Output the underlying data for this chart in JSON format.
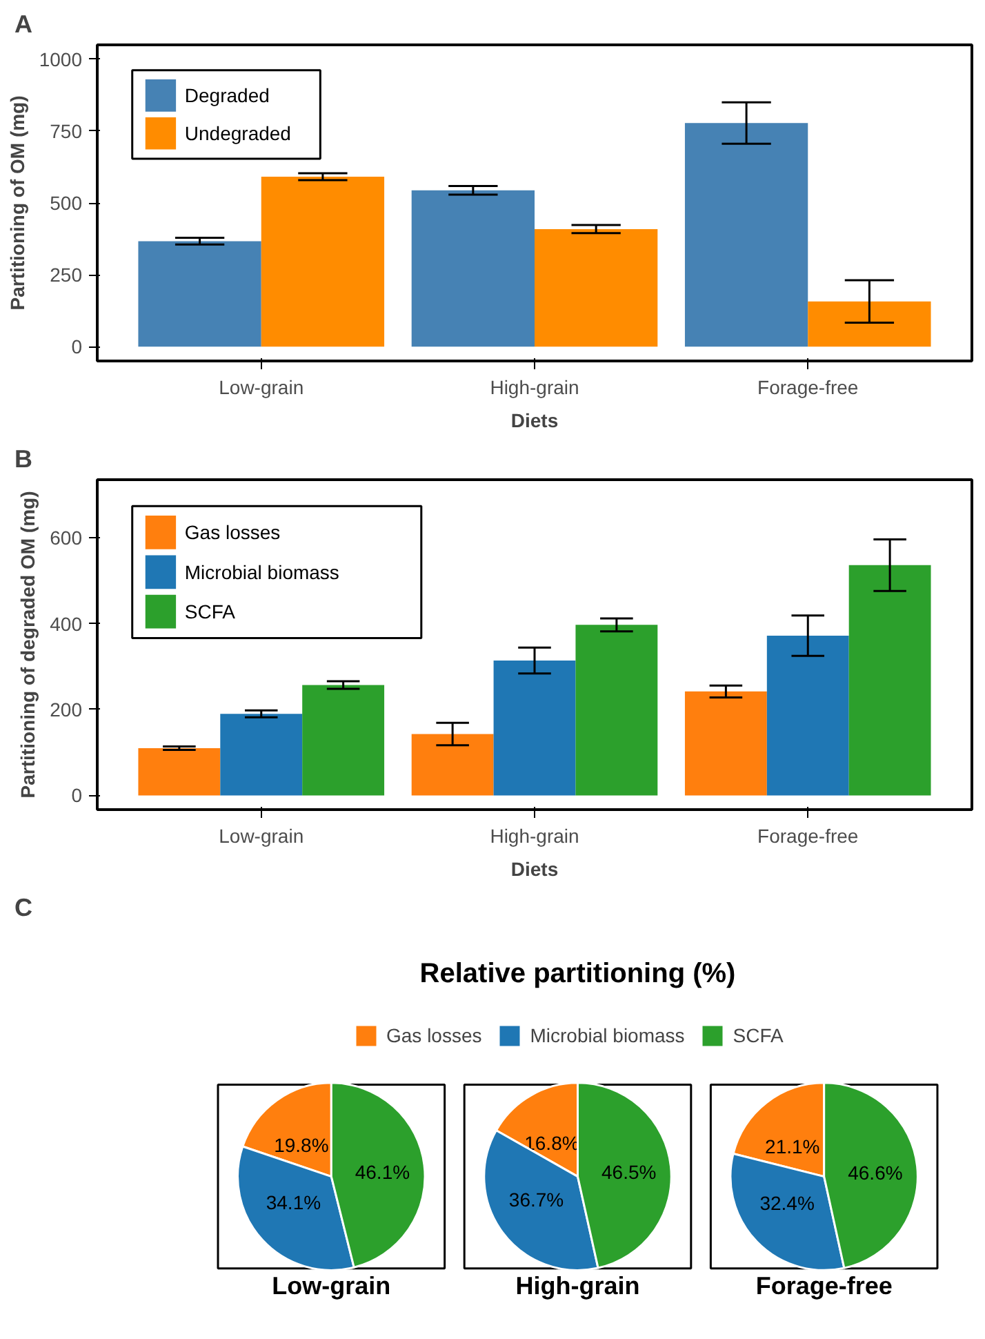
{
  "chart_data": [
    {
      "type": "bar",
      "annotations": [
        "A"
      ],
      "xlabel": "Diets",
      "ylabel": "Partitioning of OM (mg)",
      "categories": [
        "Low-grain",
        "High-grain",
        "Forage-free"
      ],
      "ylim": [
        -50,
        1050
      ],
      "yticks": [
        0,
        250,
        500,
        750,
        1000
      ],
      "legend": "top left",
      "grid": false,
      "series": [
        {
          "name": "Degraded",
          "color": "#4682b4",
          "values": [
            367,
            544,
            778
          ],
          "errors": [
            12,
            15,
            72
          ]
        },
        {
          "name": "Undegraded",
          "color": "#ff8c00",
          "values": [
            591,
            409,
            157
          ],
          "errors": [
            12,
            14,
            74
          ]
        }
      ]
    },
    {
      "type": "bar",
      "annotations": [
        "B"
      ],
      "xlabel": "Diets",
      "ylabel": "Partitioning of degraded OM (mg)",
      "categories": [
        "Low-grain",
        "High-grain",
        "Forage-free"
      ],
      "ylim": [
        -33,
        735
      ],
      "yticks": [
        0,
        200,
        400,
        600
      ],
      "legend": "top left",
      "grid": false,
      "series": [
        {
          "name": "Gas losses",
          "color": "#ff7f0e",
          "values": [
            110,
            143,
            242
          ],
          "errors": [
            4,
            26,
            14
          ]
        },
        {
          "name": "Microbial biomass",
          "color": "#1f77b4",
          "values": [
            190,
            314,
            372
          ],
          "errors": [
            8,
            30,
            47
          ]
        },
        {
          "name": "SCFA",
          "color": "#2ca02c",
          "values": [
            257,
            397,
            536
          ],
          "errors": [
            9,
            15,
            60
          ]
        }
      ]
    },
    {
      "type": "pie",
      "annotations": [
        "C"
      ],
      "title": "Relative partitioning (%)",
      "categories": [
        "Gas losses",
        "Microbial biomass",
        "SCFA"
      ],
      "colors": [
        "#ff7f0e",
        "#1f77b4",
        "#2ca02c"
      ],
      "legend": "top",
      "series": [
        {
          "name": "Low-grain",
          "values": [
            19.8,
            34.1,
            46.1
          ],
          "value_labels": [
            "19.8%",
            "34.1%",
            "46.1%"
          ]
        },
        {
          "name": "High-grain",
          "values": [
            16.8,
            36.7,
            46.5
          ],
          "value_labels": [
            "16.8%",
            "36.7%",
            "46.5%"
          ]
        },
        {
          "name": "Forage-free",
          "values": [
            21.1,
            32.4,
            46.6
          ],
          "value_labels": [
            "21.1%",
            "32.4%",
            "46.6%"
          ]
        }
      ]
    }
  ]
}
